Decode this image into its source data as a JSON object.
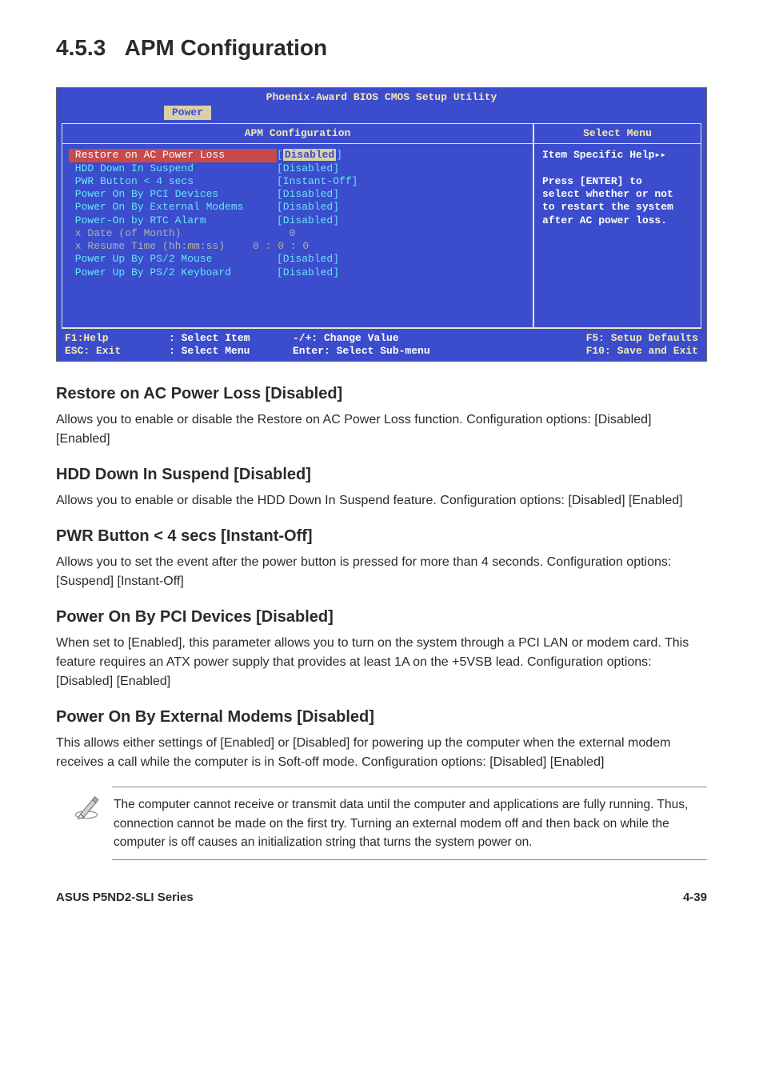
{
  "section_number": "4.5.3",
  "section_name": "APM Configuration",
  "bios": {
    "top_title": "Phoenix-Award BIOS CMOS Setup Utility",
    "tab": "Power",
    "left_title": "APM Configuration",
    "right_title": "Select Menu",
    "rows": [
      {
        "label": "Restore on AC Power Loss",
        "value": "Disabled",
        "style": "selected"
      },
      {
        "label": "HDD Down In Suspend",
        "value": "[Disabled]",
        "style": "cyan"
      },
      {
        "label": "PWR Button < 4 secs",
        "value": "[Instant-Off]",
        "style": "cyan"
      },
      {
        "label": "Power On By PCI Devices",
        "value": "[Disabled]",
        "style": "cyan"
      },
      {
        "label": "Power On By External Modems",
        "value": "[Disabled]",
        "style": "cyan"
      },
      {
        "label": "Power-On by RTC Alarm",
        "value": "[Disabled]",
        "style": "cyan"
      },
      {
        "label": "x Date (of Month)",
        "value": "  0",
        "style": "gray"
      },
      {
        "label": "x Resume Time (hh:mm:ss)",
        "value": "0 : 0 : 0",
        "style": "gray-short"
      },
      {
        "label": "Power Up By PS/2 Mouse",
        "value": "[Disabled]",
        "style": "cyan"
      },
      {
        "label": "Power Up By PS/2 Keyboard",
        "value": "[Disabled]",
        "style": "cyan"
      }
    ],
    "help_title": "Item Specific Help",
    "help_body1": "Press [ENTER] to",
    "help_body2": "select whether or not",
    "help_body3": "to restart the system",
    "help_body4": "after AC power loss.",
    "footer": {
      "f1": "F1:Help",
      "esc": "ESC: Exit",
      "up": "   : Select Item",
      "lr": "   : Select Menu",
      "pm": "-/+: Change Value",
      "ent": "Enter: Select Sub-menu",
      "f5": "F5: Setup Defaults",
      "f10": "F10: Save and Exit"
    }
  },
  "options": [
    {
      "title": "Restore on AC Power Loss [Disabled]",
      "desc": "Allows you to enable or disable the Restore on AC Power Loss function. Configuration options: [Disabled] [Enabled]"
    },
    {
      "title": "HDD Down In Suspend [Disabled]",
      "desc": "Allows you to enable or disable the HDD Down In Suspend feature. Configuration options: [Disabled] [Enabled]"
    },
    {
      "title": "PWR Button < 4 secs [Instant-Off]",
      "desc": "Allows you to set the event after the power button is pressed for more than 4 seconds. Configuration options: [Suspend] [Instant-Off]"
    },
    {
      "title": "Power On By PCI Devices [Disabled]",
      "desc": "When set to [Enabled], this parameter allows you to turn on the system through a PCI LAN or modem card. This feature requires an ATX power supply that provides at least 1A on the +5VSB lead. Configuration options: [Disabled] [Enabled]"
    },
    {
      "title": "Power On By External Modems [Disabled]",
      "desc": "This allows either settings of [Enabled] or [Disabled] for powering up the computer when the external modem receives a call while the computer is in Soft-off mode. Configuration options: [Disabled] [Enabled]"
    }
  ],
  "note": "The computer cannot receive or transmit data until the computer and applications are fully running. Thus, connection cannot be made on the first try. Turning an external modem off and then back on while the computer is off causes an initialization string that turns the system power on.",
  "footer_left": "ASUS P5ND2-SLI Series",
  "footer_right": "4-39"
}
